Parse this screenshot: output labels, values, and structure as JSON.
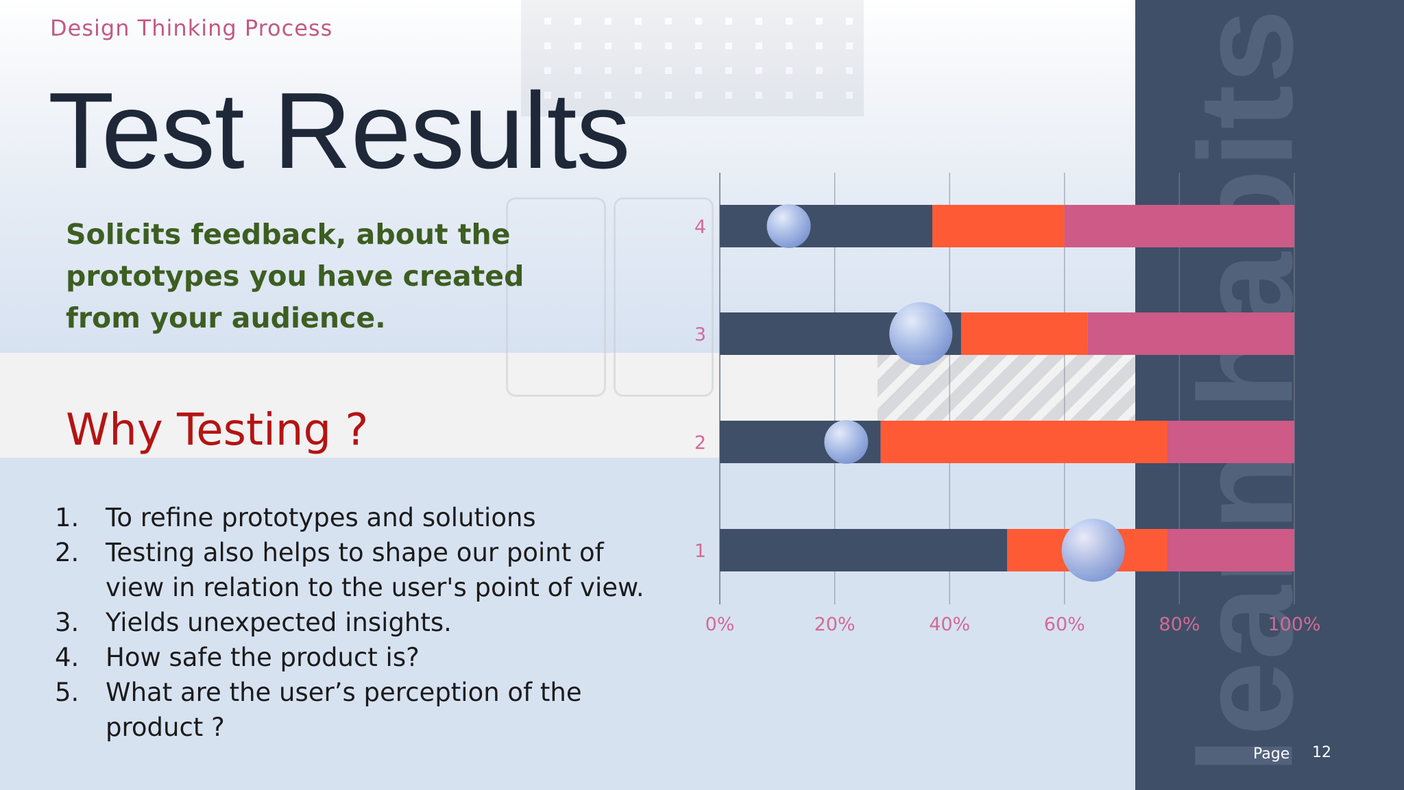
{
  "header": {
    "eyebrow": "Design Thinking Process",
    "title": "Test Results"
  },
  "intro": {
    "text": "Solicits feedback, about the prototypes you have created from your audience."
  },
  "section": {
    "heading": "Why Testing ?",
    "items": [
      {
        "num": "1.",
        "text": "To refine prototypes and solutions"
      },
      {
        "num": "2.",
        "text": "Testing also helps to shape our point of view in relation to the user's point of view."
      },
      {
        "num": "3.",
        "text": "Yields unexpected insights."
      },
      {
        "num": "4.",
        "text": "How safe the product is?"
      },
      {
        "num": "5.",
        "text": "What are the user’s perception of the product ?"
      }
    ]
  },
  "watermark": "learn habits",
  "footer": {
    "page_label": "Page",
    "page_number": "12"
  },
  "colors": {
    "series_dark": "#3f4f68",
    "series_orange": "#ff5a36",
    "series_pink": "#cd5a87",
    "axis_text": "#d36a95",
    "grid": "#7f8896",
    "bubble": "#a9bde8"
  },
  "chart_data": {
    "type": "bar",
    "orientation": "horizontal",
    "stacked": true,
    "categories": [
      "1",
      "2",
      "3",
      "4"
    ],
    "series": [
      {
        "values": [
          50,
          28,
          42,
          37
        ],
        "color": "#3f4f68"
      },
      {
        "values": [
          28,
          50,
          22,
          23
        ],
        "color": "#ff5a36"
      },
      {
        "values": [
          22,
          22,
          36,
          40
        ],
        "color": "#cd5a87"
      }
    ],
    "bubbles": [
      {
        "category": "1",
        "x": 65,
        "size": "large"
      },
      {
        "category": "2",
        "x": 22,
        "size": "small"
      },
      {
        "category": "3",
        "x": 35,
        "size": "large"
      },
      {
        "category": "4",
        "x": 12,
        "size": "small"
      }
    ],
    "xlim": [
      0,
      100
    ],
    "xticks": [
      "0%",
      "20%",
      "40%",
      "60%",
      "80%",
      "100%"
    ],
    "grid": true,
    "legend": "none"
  }
}
